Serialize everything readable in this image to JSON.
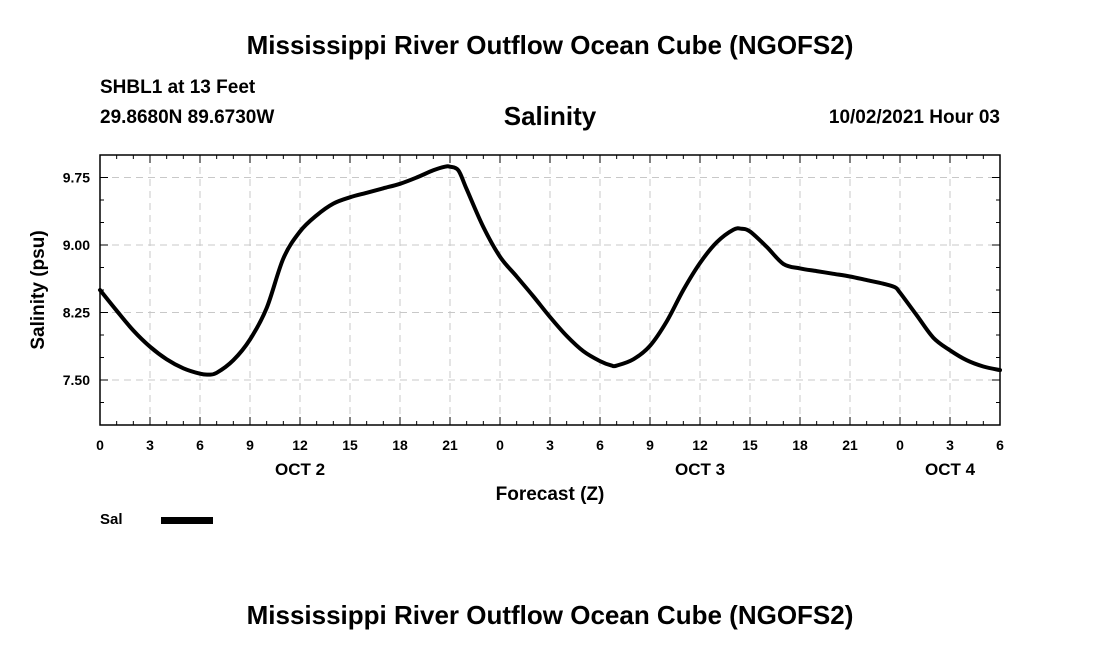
{
  "header": {
    "title": "Mississippi River Outflow Ocean Cube (NGOFS2)",
    "station": "SHBL1 at 13 Feet",
    "coordinates": "29.8680N  89.6730W",
    "datetime": "10/02/2021 Hour 03"
  },
  "footer": {
    "title": "Mississippi River Outflow Ocean Cube (NGOFS2)"
  },
  "legend": {
    "label": "Sal",
    "color": "#000000"
  },
  "chart_data": {
    "type": "line",
    "title": "Salinity",
    "xlabel": "Forecast (Z)",
    "ylabel": "Salinity (psu)",
    "xlim": [
      0,
      54
    ],
    "ylim": [
      7.0,
      10.0
    ],
    "grid": true,
    "x_ticks": [
      0,
      3,
      6,
      9,
      12,
      15,
      18,
      21,
      24,
      27,
      30,
      33,
      36,
      39,
      42,
      45,
      48,
      51,
      54
    ],
    "x_tick_labels": [
      "0",
      "3",
      "6",
      "9",
      "12",
      "15",
      "18",
      "21",
      "0",
      "3",
      "6",
      "9",
      "12",
      "15",
      "18",
      "21",
      "0",
      "3",
      "6"
    ],
    "y_ticks": [
      7.5,
      8.25,
      9.0,
      9.75
    ],
    "y_tick_labels": [
      "7.50",
      "8.25",
      "9.00",
      "9.75"
    ],
    "day_labels": [
      {
        "x": 12,
        "label": "OCT 2"
      },
      {
        "x": 36,
        "label": "OCT 3"
      },
      {
        "x": 51,
        "label": "OCT 4"
      }
    ],
    "series": [
      {
        "name": "Sal",
        "color": "#000000",
        "x": [
          0,
          1,
          2,
          3,
          4,
          5,
          6,
          6.5,
          7,
          8,
          9,
          10,
          11,
          12,
          13,
          14,
          15,
          16,
          17,
          18,
          19,
          20,
          20.7,
          21,
          21.5,
          22,
          23,
          24,
          25,
          26,
          27,
          28,
          29,
          30,
          30.7,
          31,
          32,
          33,
          34,
          35,
          36,
          37,
          38,
          38.5,
          39,
          40,
          41,
          42,
          43,
          44,
          45,
          46,
          47,
          47.7,
          48,
          49,
          50,
          51,
          52,
          53,
          54
        ],
        "y": [
          8.5,
          8.27,
          8.05,
          7.87,
          7.73,
          7.63,
          7.57,
          7.56,
          7.58,
          7.72,
          7.95,
          8.3,
          8.85,
          9.15,
          9.33,
          9.46,
          9.53,
          9.58,
          9.63,
          9.68,
          9.75,
          9.83,
          9.87,
          9.87,
          9.83,
          9.62,
          9.2,
          8.87,
          8.65,
          8.43,
          8.2,
          7.99,
          7.82,
          7.71,
          7.66,
          7.66,
          7.73,
          7.88,
          8.15,
          8.5,
          8.8,
          9.03,
          9.17,
          9.18,
          9.15,
          8.98,
          8.79,
          8.74,
          8.71,
          8.68,
          8.65,
          8.61,
          8.57,
          8.53,
          8.47,
          8.22,
          7.97,
          7.83,
          7.72,
          7.65,
          7.61
        ]
      }
    ]
  }
}
